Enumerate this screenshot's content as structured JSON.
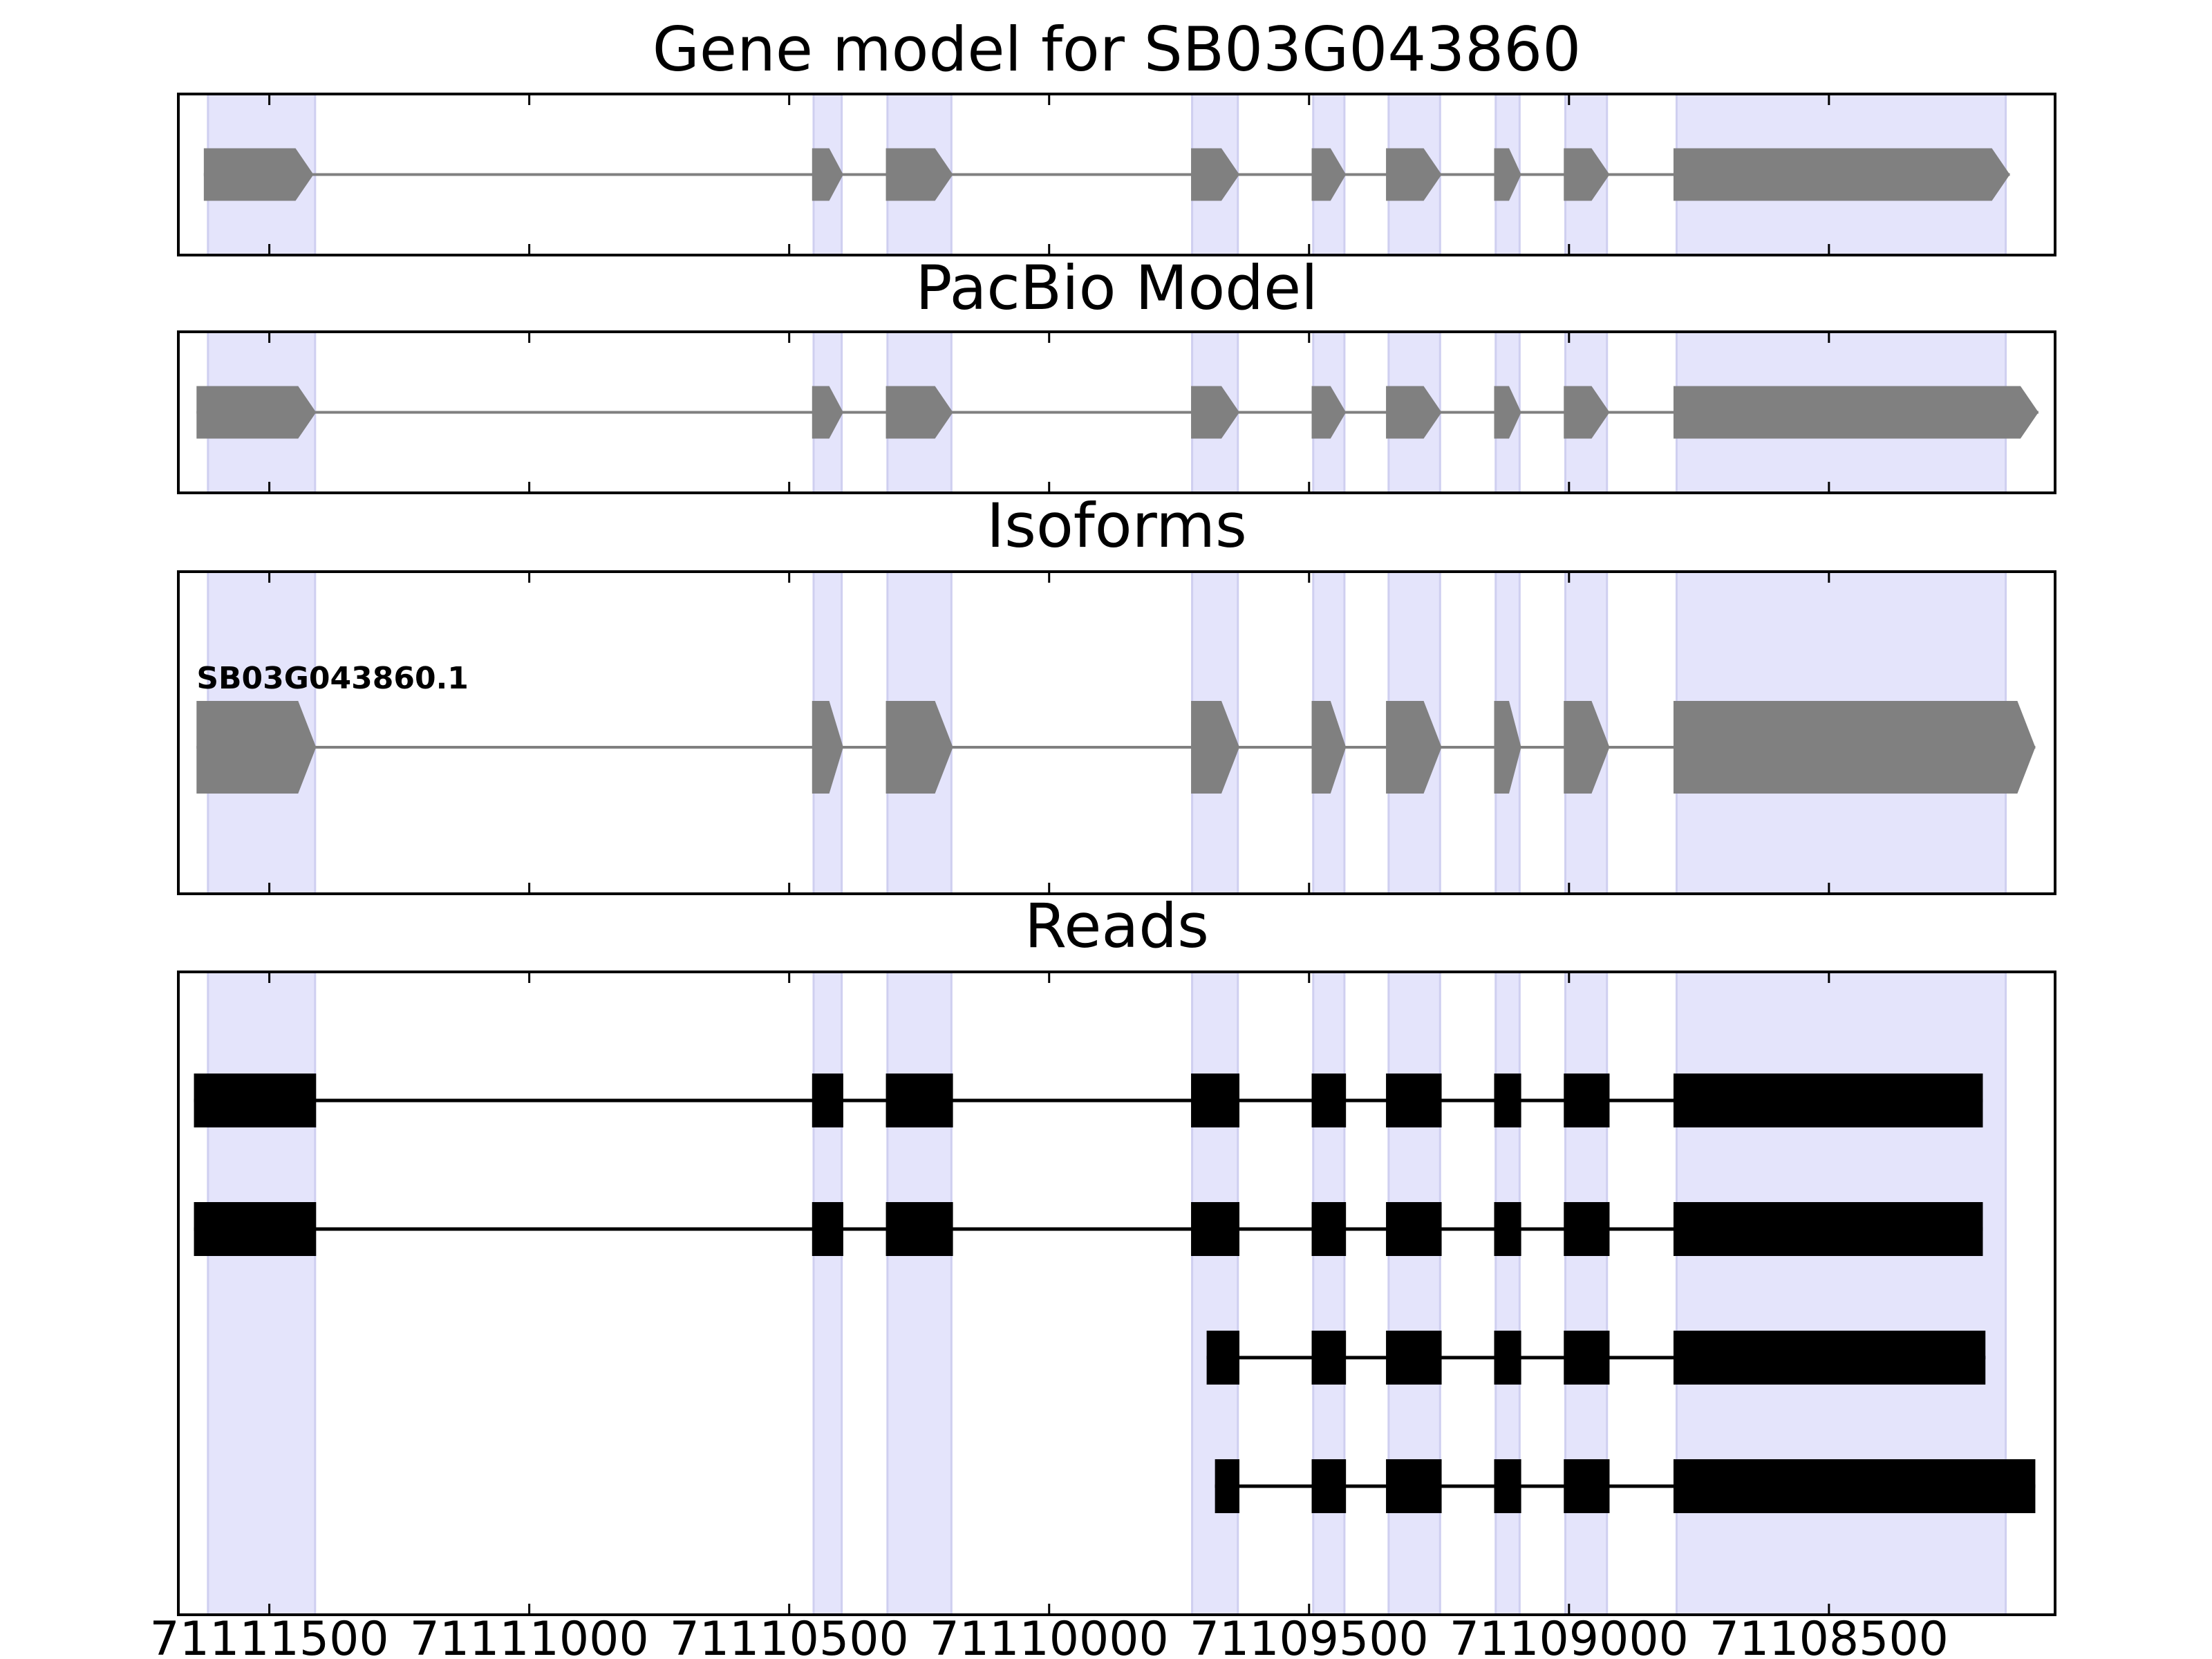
{
  "chart_data": [
    {
      "type": "gene",
      "title": "Gene model for SB03G043860",
      "xlim": [
        71111675,
        71108065
      ],
      "xticks": [
        71111500,
        71111000,
        71110500,
        71110000,
        71109500,
        71109000,
        71108500
      ],
      "show_xtick_labels": false,
      "highlight_color": "#e4e4fb",
      "highlights": [
        [
          71111618,
          71111412
        ],
        [
          71110453,
          71110399
        ],
        [
          71110311,
          71110188
        ],
        [
          71109725,
          71109637
        ],
        [
          71109492,
          71109432
        ],
        [
          71109347,
          71109248
        ],
        [
          71109141,
          71109095
        ],
        [
          71109007,
          71108927
        ],
        [
          71108793,
          71108160
        ]
      ],
      "color": "#808080",
      "features": [
        {
          "exons": [
            [
              71111626,
              71111415
            ],
            [
              71110456,
              71110396
            ],
            [
              71110314,
              71110185
            ],
            [
              71109727,
              71109634
            ],
            [
              71109495,
              71109429
            ],
            [
              71109352,
              71109245
            ],
            [
              71109144,
              71109092
            ],
            [
              71109010,
              71108922
            ],
            [
              71108799,
              71108152
            ]
          ]
        }
      ]
    },
    {
      "type": "gene",
      "title": "PacBio Model",
      "xlim": [
        71111675,
        71108065
      ],
      "xticks": [
        71111500,
        71111000,
        71110500,
        71110000,
        71109500,
        71109000,
        71108500
      ],
      "show_xtick_labels": false,
      "highlight_color": "#e4e4fb",
      "highlights": [
        [
          71111618,
          71111412
        ],
        [
          71110453,
          71110399
        ],
        [
          71110311,
          71110188
        ],
        [
          71109725,
          71109637
        ],
        [
          71109492,
          71109432
        ],
        [
          71109347,
          71109248
        ],
        [
          71109141,
          71109095
        ],
        [
          71109007,
          71108927
        ],
        [
          71108793,
          71108160
        ]
      ],
      "color": "#808080",
      "features": [
        {
          "exons": [
            [
              71111640,
              71111410
            ],
            [
              71110456,
              71110396
            ],
            [
              71110314,
              71110185
            ],
            [
              71109727,
              71109634
            ],
            [
              71109495,
              71109429
            ],
            [
              71109352,
              71109245
            ],
            [
              71109144,
              71109092
            ],
            [
              71109010,
              71108922
            ],
            [
              71108799,
              71108097
            ]
          ]
        }
      ]
    },
    {
      "type": "gene",
      "title": "Isoforms",
      "xlim": [
        71111675,
        71108065
      ],
      "xticks": [
        71111500,
        71111000,
        71110500,
        71110000,
        71109500,
        71109000,
        71108500
      ],
      "show_xtick_labels": false,
      "highlight_color": "#e4e4fb",
      "highlights": [
        [
          71111618,
          71111412
        ],
        [
          71110453,
          71110399
        ],
        [
          71110311,
          71110188
        ],
        [
          71109725,
          71109637
        ],
        [
          71109492,
          71109432
        ],
        [
          71109347,
          71109248
        ],
        [
          71109141,
          71109095
        ],
        [
          71109007,
          71108927
        ],
        [
          71108793,
          71108160
        ]
      ],
      "color": "#808080",
      "features": [
        {
          "label": "SB03G043860.1",
          "exons": [
            [
              71111640,
              71111410
            ],
            [
              71110456,
              71110396
            ],
            [
              71110314,
              71110185
            ],
            [
              71109727,
              71109634
            ],
            [
              71109495,
              71109429
            ],
            [
              71109352,
              71109245
            ],
            [
              71109144,
              71109092
            ],
            [
              71109010,
              71108922
            ],
            [
              71108799,
              71108103
            ]
          ]
        }
      ]
    },
    {
      "type": "reads",
      "title": "Reads",
      "xlim": [
        71111675,
        71108065
      ],
      "xticks": [
        71111500,
        71111000,
        71110500,
        71110000,
        71109500,
        71109000,
        71108500
      ],
      "show_xtick_labels": true,
      "highlight_color": "#e4e4fb",
      "highlights": [
        [
          71111618,
          71111412
        ],
        [
          71110453,
          71110399
        ],
        [
          71110311,
          71110188
        ],
        [
          71109725,
          71109637
        ],
        [
          71109492,
          71109432
        ],
        [
          71109347,
          71109248
        ],
        [
          71109141,
          71109095
        ],
        [
          71109007,
          71108927
        ],
        [
          71108793,
          71108160
        ]
      ],
      "color": "#000000",
      "features": [
        {
          "exons": [
            [
              71111645,
              71111410
            ],
            [
              71110456,
              71110396
            ],
            [
              71110314,
              71110185
            ],
            [
              71109727,
              71109634
            ],
            [
              71109495,
              71109429
            ],
            [
              71109352,
              71109245
            ],
            [
              71109144,
              71109092
            ],
            [
              71109010,
              71108922
            ],
            [
              71108799,
              71108204
            ]
          ]
        },
        {
          "exons": [
            [
              71111645,
              71111410
            ],
            [
              71110456,
              71110396
            ],
            [
              71110314,
              71110185
            ],
            [
              71109727,
              71109634
            ],
            [
              71109495,
              71109429
            ],
            [
              71109352,
              71109245
            ],
            [
              71109144,
              71109092
            ],
            [
              71109010,
              71108922
            ],
            [
              71108799,
              71108204
            ]
          ]
        },
        {
          "exons": [
            [
              71109697,
              71109634
            ],
            [
              71109495,
              71109429
            ],
            [
              71109352,
              71109245
            ],
            [
              71109144,
              71109092
            ],
            [
              71109010,
              71108922
            ],
            [
              71108799,
              71108199
            ]
          ]
        },
        {
          "exons": [
            [
              71109681,
              71109634
            ],
            [
              71109495,
              71109429
            ],
            [
              71109352,
              71109245
            ],
            [
              71109144,
              71109092
            ],
            [
              71109010,
              71108922
            ],
            [
              71108799,
              71108103
            ]
          ]
        }
      ]
    }
  ]
}
